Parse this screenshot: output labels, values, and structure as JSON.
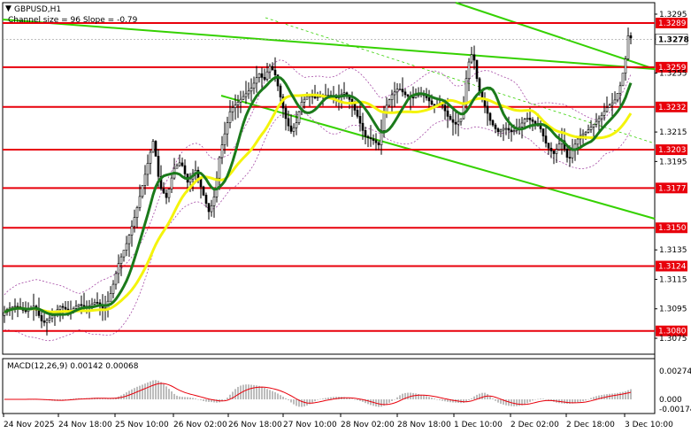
{
  "header": {
    "symbol": "GBPUSD,H1",
    "indicator": "Channel size = 96 Slope = -0.79"
  },
  "macd": {
    "label": "MACD(12,26,9) 0.00142 0.00068",
    "ticks": [
      "0.00274",
      "0.000",
      "-0.00174"
    ]
  },
  "colors": {
    "background": "#ffffff",
    "candle": "#000000",
    "level_line": "#e8000b",
    "level_label_bg": "#e8000b",
    "channel": "#35d100",
    "ma_fast": "#1b7a1b",
    "ma_slow": "#f4f40c",
    "bollinger": "#a64ca6",
    "macd_hist": "#bdbdbd",
    "macd_signal": "#e8000b"
  },
  "chart_data": {
    "type": "candlestick",
    "title": "GBPUSD,H1",
    "y_ticks": [
      "1.3295",
      "1.3278",
      "1.3255",
      "1.3215",
      "1.3195",
      "1.3135",
      "1.3115",
      "1.3095",
      "1.3075"
    ],
    "ylim": [
      1.3066,
      1.3301
    ],
    "x_ticks": [
      "24 Nov 2025",
      "24 Nov 18:00",
      "25 Nov 10:00",
      "26 Nov 02:00",
      "26 Nov 18:00",
      "27 Nov 10:00",
      "28 Nov 02:00",
      "28 Nov 18:00",
      "1 Dec 10:00",
      "2 Dec 02:00",
      "2 Dec 18:00",
      "3 Dec 10:00"
    ],
    "current_price": 1.3278,
    "levels": [
      {
        "value": 1.3289,
        "label": "1.3289"
      },
      {
        "value": 1.3259,
        "label": "1.3259"
      },
      {
        "value": 1.3232,
        "label": "1.3232"
      },
      {
        "value": 1.3203,
        "label": "1.3203"
      },
      {
        "value": 1.3177,
        "label": "1.3177"
      },
      {
        "value": 1.315,
        "label": "1.3150"
      },
      {
        "value": 1.3124,
        "label": "1.3124"
      },
      {
        "value": 1.308,
        "label": "1.3080"
      }
    ],
    "price_path": [
      [
        0,
        1.3088
      ],
      [
        10,
        1.3095
      ],
      [
        20,
        1.3097
      ],
      [
        30,
        1.3093
      ],
      [
        40,
        1.3097
      ],
      [
        50,
        1.3085
      ],
      [
        60,
        1.309
      ],
      [
        70,
        1.3097
      ],
      [
        80,
        1.3093
      ],
      [
        90,
        1.3098
      ],
      [
        100,
        1.3096
      ],
      [
        110,
        1.31
      ],
      [
        120,
        1.3094
      ],
      [
        128,
        1.3108
      ],
      [
        135,
        1.3125
      ],
      [
        145,
        1.314
      ],
      [
        155,
        1.316
      ],
      [
        165,
        1.3185
      ],
      [
        175,
        1.321
      ],
      [
        182,
        1.3178
      ],
      [
        190,
        1.317
      ],
      [
        198,
        1.319
      ],
      [
        206,
        1.3195
      ],
      [
        214,
        1.318
      ],
      [
        222,
        1.319
      ],
      [
        230,
        1.3175
      ],
      [
        238,
        1.316
      ],
      [
        244,
        1.3172
      ],
      [
        250,
        1.32
      ],
      [
        256,
        1.3215
      ],
      [
        262,
        1.323
      ],
      [
        270,
        1.3235
      ],
      [
        278,
        1.324
      ],
      [
        286,
        1.3245
      ],
      [
        294,
        1.3255
      ],
      [
        300,
        1.325
      ],
      [
        306,
        1.326
      ],
      [
        312,
        1.3255
      ],
      [
        318,
        1.324
      ],
      [
        324,
        1.3225
      ],
      [
        330,
        1.3215
      ],
      [
        336,
        1.322
      ],
      [
        342,
        1.3235
      ],
      [
        350,
        1.324
      ],
      [
        358,
        1.3238
      ],
      [
        366,
        1.324
      ],
      [
        374,
        1.324
      ],
      [
        382,
        1.3238
      ],
      [
        390,
        1.3242
      ],
      [
        398,
        1.3236
      ],
      [
        406,
        1.3225
      ],
      [
        414,
        1.3212
      ],
      [
        422,
        1.321
      ],
      [
        430,
        1.3206
      ],
      [
        436,
        1.323
      ],
      [
        444,
        1.324
      ],
      [
        452,
        1.3245
      ],
      [
        460,
        1.324
      ],
      [
        468,
        1.3238
      ],
      [
        476,
        1.3242
      ],
      [
        484,
        1.3238
      ],
      [
        492,
        1.3232
      ],
      [
        500,
        1.3235
      ],
      [
        508,
        1.3225
      ],
      [
        516,
        1.322
      ],
      [
        524,
        1.3225
      ],
      [
        530,
        1.326
      ],
      [
        536,
        1.327
      ],
      [
        542,
        1.3245
      ],
      [
        548,
        1.3235
      ],
      [
        556,
        1.3222
      ],
      [
        564,
        1.3215
      ],
      [
        572,
        1.3218
      ],
      [
        580,
        1.3215
      ],
      [
        588,
        1.3218
      ],
      [
        596,
        1.3225
      ],
      [
        604,
        1.3222
      ],
      [
        612,
        1.3218
      ],
      [
        620,
        1.3205
      ],
      [
        628,
        1.32
      ],
      [
        636,
        1.321
      ],
      [
        644,
        1.3195
      ],
      [
        650,
        1.3205
      ],
      [
        656,
        1.3212
      ],
      [
        664,
        1.3215
      ],
      [
        672,
        1.322
      ],
      [
        680,
        1.3225
      ],
      [
        688,
        1.3232
      ],
      [
        696,
        1.3236
      ],
      [
        702,
        1.3245
      ],
      [
        708,
        1.3262
      ],
      [
        712,
        1.3283
      ],
      [
        715,
        1.3278
      ]
    ]
  }
}
